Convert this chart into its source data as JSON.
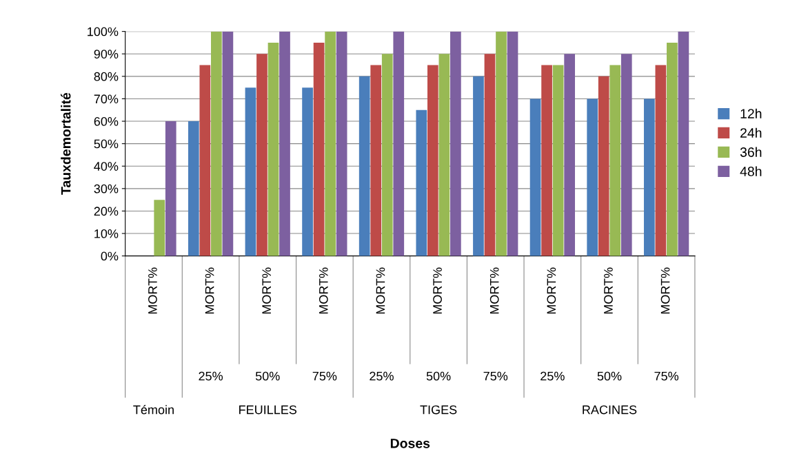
{
  "chart_data": {
    "type": "bar",
    "ylabel": "Tauxdemortalité",
    "categories": [
      "MORT%",
      "MORT%",
      "MORT%",
      "MORT%",
      "MORT%",
      "MORT%",
      "MORT%",
      "MORT%",
      "MORT%",
      "MORT%"
    ],
    "series": [
      {
        "name": "12h",
        "color": "#4a7ebb",
        "values": [
          0,
          60,
          75,
          75,
          80,
          65,
          80,
          70,
          70,
          70
        ]
      },
      {
        "name": "24h",
        "color": "#be4b48",
        "values": [
          0,
          85,
          90,
          95,
          85,
          85,
          90,
          85,
          80,
          85
        ]
      },
      {
        "name": "36h",
        "color": "#98b954",
        "values": [
          25,
          100,
          95,
          100,
          90,
          90,
          100,
          85,
          85,
          95
        ]
      },
      {
        "name": "48h",
        "color": "#7d60a0",
        "values": [
          60,
          100,
          100,
          100,
          100,
          100,
          100,
          90,
          90,
          100
        ]
      }
    ],
    "annotations": [
      "25%",
      "50%",
      "75%",
      "25%",
      "50%",
      "75%",
      "25%",
      "50%",
      "75%",
      "Témoin",
      "FEUILLES",
      "TIGES",
      "RACINES",
      "Doses"
    ],
    "ylim": [
      0,
      100
    ],
    "yticks": [
      {
        "value": 0,
        "label": "0%"
      },
      {
        "value": 10,
        "label": "10%"
      },
      {
        "value": 20,
        "label": "20%"
      },
      {
        "value": 30,
        "label": "30%"
      },
      {
        "value": 40,
        "label": "40%"
      },
      {
        "value": 50,
        "label": "50%"
      },
      {
        "value": 60,
        "label": "60%"
      },
      {
        "value": 70,
        "label": "70%"
      },
      {
        "value": 80,
        "label": "80%"
      },
      {
        "value": 90,
        "label": "90%"
      },
      {
        "value": 100,
        "label": "100%"
      }
    ],
    "grid": "y",
    "legend": "right"
  }
}
